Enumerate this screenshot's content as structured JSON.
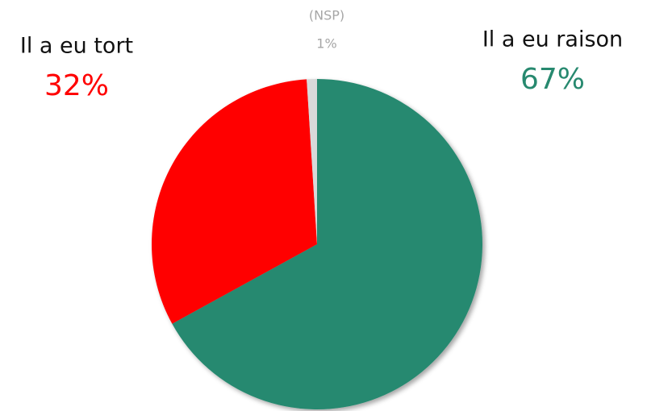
{
  "chart_data": {
    "type": "pie",
    "categories": [
      "Il a eu raison",
      "Il a eu tort",
      "(NSP)"
    ],
    "values": [
      67,
      32,
      1
    ],
    "value_labels": [
      "67%",
      "32%",
      "1%"
    ],
    "colors": [
      "#27896f",
      "#ff0000",
      "#d9d9d9"
    ]
  }
}
